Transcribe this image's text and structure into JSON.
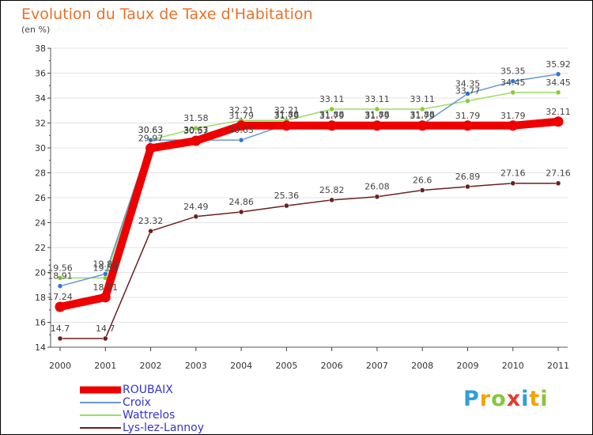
{
  "page": {
    "title": "Evolution du Taux de Taxe d'Habitation",
    "unit_label": "(en %)",
    "logo_text": "Proxiti"
  },
  "chart_data": {
    "type": "line",
    "title": "Evolution du Taux de Taxe d'Habitation",
    "ylabel": "(en %)",
    "xlabel": "",
    "x": [
      2000,
      2001,
      2002,
      2003,
      2004,
      2005,
      2006,
      2007,
      2008,
      2009,
      2010,
      2011
    ],
    "x_labels": [
      "2000",
      "2001",
      "2002",
      "2003",
      "2004",
      "2005",
      "2006",
      "2007",
      "2008",
      "2009",
      "2010",
      "2011"
    ],
    "ylim": [
      14,
      38
    ],
    "yticks": [
      14,
      16,
      18,
      20,
      22,
      24,
      26,
      28,
      30,
      32,
      34,
      36,
      38
    ],
    "grid": "horizontal",
    "series": [
      {
        "name": "Lys-lez-Lannoy",
        "color": "#6b1f1f",
        "marker_color": "#6b1f1f",
        "values": [
          14.7,
          14.7,
          23.32,
          24.49,
          24.86,
          25.36,
          25.82,
          26.08,
          26.6,
          26.89,
          27.16,
          27.16
        ],
        "labels": [
          "14.7",
          "14.7",
          "23.32",
          "24.49",
          "24.86",
          "25.36",
          "25.82",
          "26.08",
          "26.6",
          "26.89",
          "27.16",
          "27.16"
        ]
      },
      {
        "name": "Wattrelos",
        "color": "#99dd66",
        "marker_color": "#88cc33",
        "values": [
          19.56,
          19.56,
          30.63,
          31.58,
          32.21,
          32.21,
          33.11,
          33.11,
          33.11,
          33.77,
          34.45,
          34.45
        ],
        "labels": [
          "19.56",
          "19.56",
          "30.63",
          "31.58",
          "32.21",
          "32.21",
          "33.11",
          "33.11",
          "33.11",
          "33.77",
          "34.45",
          "34.45"
        ]
      },
      {
        "name": "Croix",
        "color": "#6699cc",
        "marker_color": "#3377cc",
        "values": [
          18.91,
          19.88,
          30.63,
          30.63,
          30.63,
          31.88,
          31.88,
          31.88,
          31.88,
          34.35,
          35.35,
          35.92
        ],
        "labels": [
          "18.91",
          "19.88",
          "30.63",
          "30.63",
          "30.63",
          "31.88",
          "31.88",
          "31.88",
          "31.88",
          "34.35",
          "35.35",
          "35.92"
        ]
      },
      {
        "name": "ROUBAIX",
        "color": "#ee0000",
        "marker_color": "#ee0000",
        "values": [
          17.24,
          18.01,
          29.97,
          30.57,
          31.79,
          31.79,
          31.79,
          31.79,
          31.79,
          31.79,
          31.79,
          32.11
        ],
        "labels": [
          "17.24",
          "18.01",
          "29.97",
          "30.57",
          "31.79",
          "31.79",
          "31.79",
          "31.79",
          "31.79",
          "31.79",
          "31.79",
          "32.11"
        ]
      }
    ],
    "legend": [
      "ROUBAIX",
      "Croix",
      "Wattrelos",
      "Lys-lez-Lannoy"
    ],
    "legend_position": "bottom-left"
  }
}
